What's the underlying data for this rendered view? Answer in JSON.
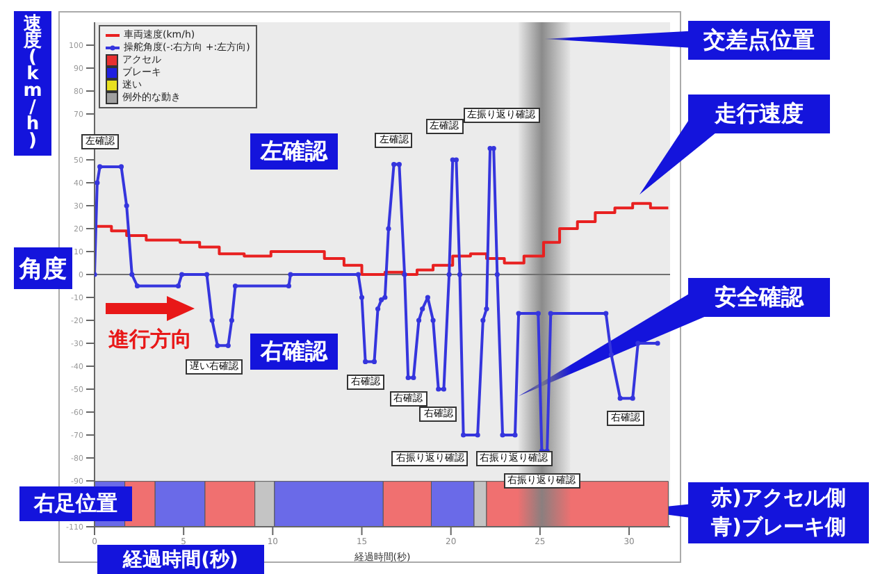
{
  "chart_data": {
    "type": "line",
    "ylabel": "速度(km/h)",
    "xlabel": "経過時間(秒)",
    "xlim": [
      0,
      32.3
    ],
    "xticks": [
      0,
      5,
      10,
      15,
      20,
      25,
      30
    ],
    "ylim": [
      -110,
      110
    ],
    "yticks": [
      -110,
      {
        "value": -100,
        "label": null
      },
      -90,
      -80,
      -70,
      -60,
      -50,
      -40,
      -30,
      -20,
      -10,
      0,
      10,
      20,
      30,
      40,
      50,
      {
        "value": 60,
        "label": null
      },
      70,
      80,
      90,
      100
    ],
    "legend": "top left",
    "series": [
      {
        "name": "車両速度(km/h)",
        "type": "step",
        "color": "#e82020",
        "marker": "none",
        "x": [
          0,
          0.95,
          1.8,
          2.9,
          4.8,
          5.9,
          7,
          8.4,
          9.9,
          12.9,
          14,
          15,
          16.3,
          17.3,
          18.1,
          19,
          20.1,
          21.1,
          22,
          23,
          24.1,
          25.2,
          26.1,
          27.1,
          28.1,
          29.2,
          30.2,
          31.2,
          32.2
        ],
        "values": [
          21,
          19,
          17,
          15,
          14,
          12,
          9,
          8,
          10,
          7,
          4,
          0,
          1,
          0,
          2,
          4,
          8,
          9,
          7,
          5,
          8,
          14,
          20,
          23,
          27,
          29,
          31,
          29,
          29
        ]
      },
      {
        "name": "操舵角度(-:右方向 +:左方向)",
        "color": "#3535dd",
        "marker": "circle",
        "x": [
          0,
          0.15,
          0.3,
          1.5,
          1.8,
          2.1,
          2.4,
          4.7,
          4.9,
          6.3,
          6.6,
          6.9,
          7.5,
          7.7,
          7.9,
          10.9,
          11,
          14.8,
          15,
          15.2,
          15.7,
          15.9,
          16.1,
          16.3,
          16.5,
          16.8,
          17.1,
          17.4,
          17.6,
          17.9,
          18.2,
          18.4,
          18.7,
          19,
          19.3,
          19.6,
          19.9,
          20.1,
          20.3,
          20.5,
          20.7,
          21.5,
          21.8,
          22,
          22.2,
          22.4,
          22.6,
          22.9,
          23.6,
          23.8,
          24.9,
          25.1,
          25.4,
          25.6,
          28.7,
          29,
          29.5,
          30.2,
          30.5,
          31.6
        ],
        "values": [
          0,
          40,
          47,
          47,
          30,
          0,
          -5,
          -5,
          0,
          0,
          -20,
          -31,
          -31,
          -20,
          -5,
          -5,
          0,
          0,
          -10,
          -38,
          -38,
          -15,
          -11,
          -10,
          20,
          48,
          48,
          0,
          -45,
          -45,
          -20,
          -15,
          -10,
          -20,
          -50,
          -50,
          0,
          50,
          50,
          0,
          -70,
          -70,
          -20,
          -15,
          55,
          55,
          0,
          -70,
          -70,
          -17,
          -17,
          -77,
          -77,
          -17,
          -17,
          -35,
          -54,
          -54,
          -30,
          -30
        ]
      },
      {
        "name": "アクセル",
        "type": "bar",
        "color": "#e83030"
      },
      {
        "name": "ブレーキ",
        "type": "bar",
        "color": "#2020e0"
      },
      {
        "name": "迷い",
        "type": "bar",
        "color": "#e8e020"
      },
      {
        "name": "例外的な動き",
        "type": "bar",
        "color": "#a0a0a0"
      }
    ],
    "ref_lines": [
      {
        "axis": "y",
        "value": 0,
        "color": "#707070"
      }
    ],
    "bands": [
      {
        "axis": "x",
        "from": 0,
        "to": 1.7,
        "color": "#6a6ae8"
      },
      {
        "axis": "x",
        "from": 1.7,
        "to": 3.4,
        "color": "#f07070"
      },
      {
        "axis": "x",
        "from": 3.4,
        "to": 6.2,
        "color": "#6a6ae8"
      },
      {
        "axis": "x",
        "from": 6.2,
        "to": 9,
        "color": "#f07070"
      },
      {
        "axis": "x",
        "from": 9,
        "to": 10.1,
        "color": "#c4c4c4"
      },
      {
        "axis": "x",
        "from": 10.1,
        "to": 16.2,
        "color": "#6a6ae8"
      },
      {
        "axis": "x",
        "from": 16.2,
        "to": 18.9,
        "color": "#f07070"
      },
      {
        "axis": "x",
        "from": 18.9,
        "to": 21.3,
        "color": "#6a6ae8"
      },
      {
        "axis": "x",
        "from": 21.3,
        "to": 22,
        "color": "#c4c4c4"
      },
      {
        "axis": "x",
        "from": 22,
        "to": 32.2,
        "color": "#f07070"
      },
      {
        "axis": "x",
        "from": 23.8,
        "to": 26.7,
        "color": "#808080",
        "label": "交差点位置"
      }
    ],
    "annotations": [
      "角度",
      "左確認",
      "右確認",
      "進行方向",
      "右足位置",
      "走行速度",
      "安全確認",
      "赤)アクセル側",
      "青)ブレーキ側",
      {
        "text": "左確認",
        "x": 0.3,
        "y": 47
      },
      {
        "text": "左確認",
        "x": 16.8,
        "y": 48
      },
      {
        "text": "左確認",
        "x": 20.1,
        "y": 50
      },
      {
        "text": "左振り返り確認",
        "x": 22.2,
        "y": 55
      },
      {
        "text": "遅い右確認",
        "x": 7.5,
        "y": -31
      },
      {
        "text": "右確認",
        "x": 15.2,
        "y": -38
      },
      {
        "text": "右確認",
        "x": 17.6,
        "y": -45
      },
      {
        "text": "右確認",
        "x": 19.3,
        "y": -50
      },
      {
        "text": "右確認",
        "x": 29.5,
        "y": -54
      },
      {
        "text": "右振り返り確認",
        "x": 20.7,
        "y": -70
      },
      {
        "text": "右振り返り確認",
        "x": 22.9,
        "y": -70
      },
      {
        "text": "右振り返り確認",
        "x": 25.1,
        "y": -77
      }
    ]
  }
}
